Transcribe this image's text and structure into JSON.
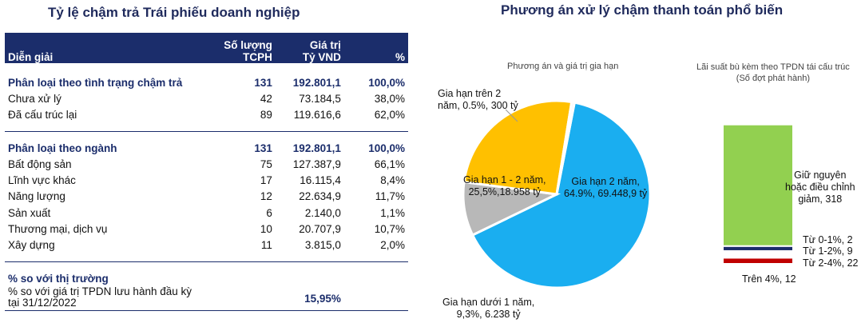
{
  "left_title": "Tỷ lệ chậm trả Trái phiếu doanh nghiệp",
  "right_title": "Phương án xử lý chậm thanh toán phổ biến",
  "table": {
    "headers": {
      "label": "Diễn giải",
      "count_line1": "Số lượng",
      "count_line2": "TCPH",
      "value_line1": "Giá trị",
      "value_line2": "Tỷ VND",
      "pct": "%"
    },
    "group1": {
      "header": {
        "label": "Phân loại theo tình trạng chậm trả",
        "count": "131",
        "value": "192.801,1",
        "pct": "100,0%"
      },
      "rows": [
        {
          "label": "Chưa xử lý",
          "count": "42",
          "value": "73.184,5",
          "pct": "38,0%"
        },
        {
          "label": "Đã cấu trúc lại",
          "count": "89",
          "value": "119.616,6",
          "pct": "62,0%"
        }
      ]
    },
    "group2": {
      "header": {
        "label": "Phân loại theo ngành",
        "count": "131",
        "value": "192.801,1",
        "pct": "100,0%"
      },
      "rows": [
        {
          "label": "Bất động sản",
          "count": "75",
          "value": "127.387,9",
          "pct": "66,1%"
        },
        {
          "label": "Lĩnh vực khác",
          "count": "17",
          "value": "16.115,4",
          "pct": "8,4%"
        },
        {
          "label": "Năng lượng",
          "count": "12",
          "value": "22.634,9",
          "pct": "11,7%"
        },
        {
          "label": "Sản xuất",
          "count": "6",
          "value": "2.140,0",
          "pct": "1,1%"
        },
        {
          "label": "Thương mại, dịch vụ",
          "count": "10",
          "value": "20.707,9",
          "pct": "10,7%"
        },
        {
          "label": "Xây dựng",
          "count": "11",
          "value": "3.815,0",
          "pct": "2,0%"
        }
      ]
    },
    "market": {
      "header": "% so với thị trường",
      "line1": "% so với giá trị TPDN lưu hành đầu kỳ",
      "line2": "tại 31/12/2022",
      "value": "15,95%"
    }
  },
  "chart_data": [
    {
      "type": "pie",
      "subtitle": "Phương án và giá trị gia hạn",
      "slices": [
        {
          "label_l1": "Gia hạn 2 năm,",
          "label_l2": "64.9%, 69.448,9 tỷ",
          "pct": 64.9,
          "value": 69448.9,
          "color": "#1aaef0"
        },
        {
          "label_l1": "Gia hạn dưới 1 năm,",
          "label_l2": "9,3%, 6.238 tỷ",
          "pct": 9.3,
          "value": 6238,
          "color": "#b8b8b8"
        },
        {
          "label_l1": "Gia hạn 1 - 2 năm,",
          "label_l2": "25,5%,18.958 tỷ",
          "pct": 25.5,
          "value": 18958,
          "color": "#ffc000"
        },
        {
          "label_l1": "Gia hạn trên 2",
          "label_l2": "năm, 0.5%, 300 tỷ",
          "pct": 0.5,
          "value": 300,
          "color": "#f2f2f2"
        }
      ]
    },
    {
      "type": "bar",
      "stacked": true,
      "subtitle_l1": "Lãi suất bù kèm theo TPDN tái cấu trúc",
      "subtitle_l2": "(Số đợt phát hành)",
      "segments": [
        {
          "label": "Trên 4%, 12",
          "value": 12,
          "color": "#c00000"
        },
        {
          "label": "Từ 2-4%, 22",
          "value": 22,
          "color": "#ffffff"
        },
        {
          "label": "Từ 1-2%, 9",
          "value": 9,
          "color": "#1b2d6b"
        },
        {
          "label": "Từ 0-1%, 2",
          "value": 2,
          "color": "#ffffff"
        },
        {
          "label_l1": "Giữ nguyên",
          "label_l2": "hoặc điều chỉnh",
          "label_l3": "giảm, 318",
          "value": 318,
          "color": "#92d050"
        }
      ]
    }
  ]
}
